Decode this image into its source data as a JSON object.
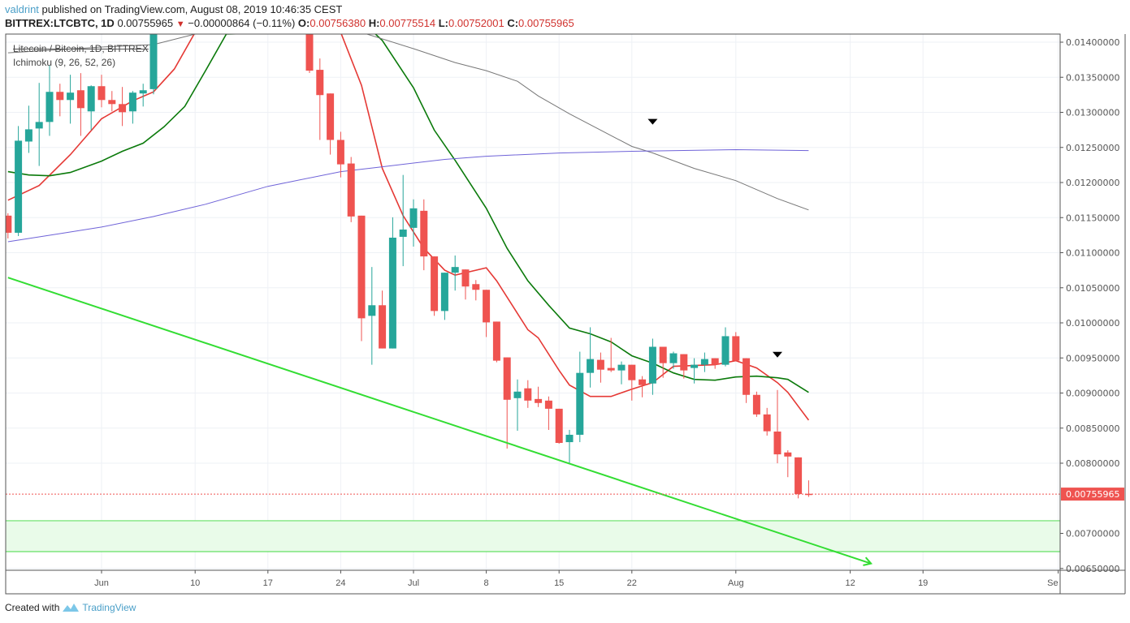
{
  "header": {
    "author": "valdrint",
    "published_text": "published on TradingView.com, August 08, 2019 10:46:35 CEST",
    "symbol": "BITTREX:LTCBTC, 1D",
    "last": "0.00755965",
    "change": "−0.00000864 (−0.11%)",
    "change_direction_icon": "triangle-down-icon",
    "o_label": "O:",
    "o": "0.00756380",
    "h_label": "H:",
    "h": "0.00775514",
    "l_label": "L:",
    "l": "0.00752001",
    "c_label": "C:",
    "c": "0.00755965"
  },
  "legend": {
    "series": "Litecoin / Bitcoin, 1D, BITTREX",
    "indicator": "Ichimoku (9, 26, 52, 26)"
  },
  "footer": {
    "created_with": "Created with",
    "brand": "TradingView"
  },
  "colors": {
    "up": "#26a69a",
    "down": "#ef5350",
    "conversion_line": "#e53935",
    "base_line": "#0b7a0b",
    "lagging_line": "#777777",
    "purple_line": "#6f63d8",
    "trendline": "#33dd33",
    "zone_fill": "#e9fbe9",
    "zone_border": "#66e066",
    "last_price": "#ef5350"
  },
  "chart_data": {
    "type": "candlestick",
    "ylim": [
      0.0065,
      0.0141
    ],
    "grid": true,
    "y_ticks": [
      "0.01400000",
      "0.01350000",
      "0.01300000",
      "0.01250000",
      "0.01200000",
      "0.01150000",
      "0.01100000",
      "0.01050000",
      "0.01000000",
      "0.00950000",
      "0.00900000",
      "0.00850000",
      "0.00800000",
      "0.00700000",
      "0.00650000"
    ],
    "y_tick_values": [
      0.014,
      0.0135,
      0.013,
      0.0125,
      0.012,
      0.0115,
      0.011,
      0.0105,
      0.01,
      0.0095,
      0.009,
      0.0085,
      0.008,
      0.007,
      0.0065
    ],
    "x_ticks": [
      {
        "label": "Jun",
        "date": "2019-06-01"
      },
      {
        "label": "10",
        "date": "2019-06-10"
      },
      {
        "label": "17",
        "date": "2019-06-17"
      },
      {
        "label": "24",
        "date": "2019-06-24"
      },
      {
        "label": "Jul",
        "date": "2019-07-01"
      },
      {
        "label": "8",
        "date": "2019-07-08"
      },
      {
        "label": "15",
        "date": "2019-07-15"
      },
      {
        "label": "22",
        "date": "2019-07-22"
      },
      {
        "label": "Aug",
        "date": "2019-08-01"
      },
      {
        "label": "12",
        "date": "2019-08-12"
      },
      {
        "label": "19",
        "date": "2019-08-19"
      },
      {
        "label": "Se",
        "date": "2019-09-01"
      }
    ],
    "last_price_label": "0.00755965",
    "last_price": 0.00755965,
    "candles_columns": [
      "date",
      "open",
      "high",
      "low",
      "close"
    ],
    "candles": [
      [
        "2019-05-23",
        0.011528,
        0.011562,
        0.011203,
        0.011284
      ],
      [
        "2019-05-24",
        0.011284,
        0.012805,
        0.011237,
        0.012596
      ],
      [
        "2019-05-25",
        0.012584,
        0.013095,
        0.012422,
        0.012758
      ],
      [
        "2019-05-26",
        0.01277,
        0.01342,
        0.012236,
        0.012863
      ],
      [
        "2019-05-27",
        0.012863,
        0.013675,
        0.012665,
        0.013292
      ],
      [
        "2019-05-28",
        0.013292,
        0.013408,
        0.012944,
        0.013176
      ],
      [
        "2019-05-29",
        0.013176,
        0.013536,
        0.012839,
        0.013281
      ],
      [
        "2019-05-30",
        0.013315,
        0.013559,
        0.012665,
        0.01306
      ],
      [
        "2019-05-31",
        0.013014,
        0.013385,
        0.012747,
        0.013373
      ],
      [
        "2019-06-01",
        0.013373,
        0.013536,
        0.013072,
        0.013176
      ],
      [
        "2019-06-02",
        0.013176,
        0.013304,
        0.013014,
        0.013118
      ],
      [
        "2019-06-03",
        0.013118,
        0.013362,
        0.012805,
        0.013002
      ],
      [
        "2019-06-04",
        0.013014,
        0.013304,
        0.012839,
        0.013281
      ],
      [
        "2019-06-05",
        0.013269,
        0.013408,
        0.013083,
        0.013315
      ],
      [
        "2019-06-06",
        0.013331,
        0.0146,
        0.013257,
        0.0145
      ],
      [
        "2019-06-21",
        0.0142,
        0.0143,
        0.01356,
        0.013594
      ],
      [
        "2019-06-22",
        0.013606,
        0.013768,
        0.012607,
        0.013246
      ],
      [
        "2019-06-23",
        0.013269,
        0.013269,
        0.012398,
        0.012607
      ],
      [
        "2019-06-24",
        0.012607,
        0.012723,
        0.012073,
        0.012259
      ],
      [
        "2019-06-25",
        0.012271,
        0.012364,
        0.011435,
        0.011516
      ],
      [
        "2019-06-26",
        0.011528,
        0.011528,
        0.00974,
        0.010065
      ],
      [
        "2019-06-27",
        0.0101,
        0.010796,
        0.009403,
        0.010251
      ],
      [
        "2019-06-28",
        0.010251,
        0.01046,
        0.009635,
        0.009635
      ],
      [
        "2019-06-29",
        0.009635,
        0.011504,
        0.009635,
        0.011214
      ],
      [
        "2019-06-30",
        0.011226,
        0.012108,
        0.010808,
        0.01133
      ],
      [
        "2019-07-01",
        0.011354,
        0.01176,
        0.011086,
        0.011632
      ],
      [
        "2019-07-02",
        0.011597,
        0.01176,
        0.01075,
        0.010947
      ],
      [
        "2019-07-03",
        0.010947,
        0.010947,
        0.0101,
        0.010169
      ],
      [
        "2019-07-04",
        0.010169,
        0.010715,
        0.010042,
        0.010715
      ],
      [
        "2019-07-05",
        0.010715,
        0.01096,
        0.01046,
        0.010796
      ],
      [
        "2019-07-06",
        0.010761,
        0.010761,
        0.010332,
        0.010518
      ],
      [
        "2019-07-07",
        0.010552,
        0.01061,
        0.01032,
        0.010471
      ],
      [
        "2019-07-08",
        0.010471,
        0.010471,
        0.009798,
        0.010007
      ],
      [
        "2019-07-09",
        0.010018,
        0.010018,
        0.009438,
        0.009461
      ],
      [
        "2019-07-10",
        0.009508,
        0.009508,
        0.008208,
        0.008904
      ],
      [
        "2019-07-11",
        0.008927,
        0.009194,
        0.008463,
        0.00902
      ],
      [
        "2019-07-12",
        0.009067,
        0.009183,
        0.008788,
        0.008892
      ],
      [
        "2019-07-13",
        0.008915,
        0.00909,
        0.0088,
        0.008858
      ],
      [
        "2019-07-14",
        0.008892,
        0.008951,
        0.008474,
        0.008776
      ],
      [
        "2019-07-15",
        0.008776,
        0.008776,
        0.008277,
        0.008289
      ],
      [
        "2019-07-16",
        0.0083,
        0.008475,
        0.007987,
        0.008405
      ],
      [
        "2019-07-17",
        0.008405,
        0.009589,
        0.0083,
        0.009287
      ],
      [
        "2019-07-18",
        0.009287,
        0.009937,
        0.009078,
        0.009484
      ],
      [
        "2019-07-19",
        0.009473,
        0.009577,
        0.009148,
        0.009333
      ],
      [
        "2019-07-20",
        0.009357,
        0.009786,
        0.009299,
        0.009322
      ],
      [
        "2019-07-21",
        0.009322,
        0.00945,
        0.009125,
        0.009403
      ],
      [
        "2019-07-22",
        0.009403,
        0.009403,
        0.008892,
        0.009183
      ],
      [
        "2019-07-23",
        0.009194,
        0.009241,
        0.008939,
        0.009113
      ],
      [
        "2019-07-24",
        0.009136,
        0.009775,
        0.008974,
        0.009659
      ],
      [
        "2019-07-25",
        0.009659,
        0.009659,
        0.009217,
        0.009426
      ],
      [
        "2019-07-26",
        0.009426,
        0.009589,
        0.009345,
        0.009566
      ],
      [
        "2019-07-27",
        0.009554,
        0.009554,
        0.009206,
        0.009322
      ],
      [
        "2019-07-28",
        0.009357,
        0.009496,
        0.009136,
        0.009403
      ],
      [
        "2019-07-29",
        0.009403,
        0.009577,
        0.009299,
        0.009484
      ],
      [
        "2019-07-30",
        0.009496,
        0.009496,
        0.009345,
        0.009403
      ],
      [
        "2019-07-31",
        0.009403,
        0.009937,
        0.00938,
        0.00981
      ],
      [
        "2019-08-01",
        0.00981,
        0.009868,
        0.009461,
        0.009461
      ],
      [
        "2019-08-02",
        0.009496,
        0.009496,
        0.008858,
        0.008974
      ],
      [
        "2019-08-03",
        0.008974,
        0.00902,
        0.00866,
        0.008695
      ],
      [
        "2019-08-04",
        0.008695,
        0.008788,
        0.008393,
        0.008455
      ],
      [
        "2019-08-05",
        0.008451,
        0.009043,
        0.007999,
        0.008126
      ],
      [
        "2019-08-06",
        0.008153,
        0.008184,
        0.007801,
        0.008095
      ],
      [
        "2019-08-07",
        0.008083,
        0.008083,
        0.007499,
        0.00756
      ],
      [
        "2019-08-08",
        0.0075638,
        0.00775514,
        0.00752001,
        0.00755965
      ]
    ],
    "lines": [
      {
        "key": "conversion_line",
        "points": [
          [
            "2019-05-23",
            0.011748
          ],
          [
            "2019-05-26",
            0.011957
          ],
          [
            "2019-05-29",
            0.012398
          ],
          [
            "2019-06-01",
            0.012909
          ],
          [
            "2019-06-04",
            0.013164
          ],
          [
            "2019-06-06",
            0.013292
          ],
          [
            "2019-06-08",
            0.013617
          ],
          [
            "2019-06-10",
            0.01414
          ],
          [
            "2019-06-24",
            0.01414
          ],
          [
            "2019-06-26",
            0.013385
          ],
          [
            "2019-06-28",
            0.012201
          ],
          [
            "2019-06-30",
            0.011528
          ],
          [
            "2019-07-02",
            0.011063
          ],
          [
            "2019-07-04",
            0.01075
          ],
          [
            "2019-07-05",
            0.01068
          ],
          [
            "2019-07-08",
            0.010785
          ],
          [
            "2019-07-09",
            0.010599
          ],
          [
            "2019-07-11",
            0.010134
          ],
          [
            "2019-07-12",
            0.009902
          ],
          [
            "2019-07-13",
            0.009786
          ],
          [
            "2019-07-15",
            0.009322
          ],
          [
            "2019-07-16",
            0.009113
          ],
          [
            "2019-07-18",
            0.008951
          ],
          [
            "2019-07-20",
            0.008951
          ],
          [
            "2019-07-22",
            0.009055
          ],
          [
            "2019-07-24",
            0.009148
          ],
          [
            "2019-07-26",
            0.00938
          ],
          [
            "2019-07-28",
            0.009392
          ],
          [
            "2019-07-30",
            0.009403
          ],
          [
            "2019-08-01",
            0.009461
          ],
          [
            "2019-08-03",
            0.009357
          ],
          [
            "2019-08-05",
            0.009148
          ],
          [
            "2019-08-06",
            0.009009
          ],
          [
            "2019-08-08",
            0.008614
          ]
        ]
      },
      {
        "key": "base_line",
        "points": [
          [
            "2019-05-23",
            0.012155
          ],
          [
            "2019-05-25",
            0.012108
          ],
          [
            "2019-05-27",
            0.012096
          ],
          [
            "2019-05-29",
            0.012143
          ],
          [
            "2019-06-01",
            0.012305
          ],
          [
            "2019-06-03",
            0.012445
          ],
          [
            "2019-06-05",
            0.012561
          ],
          [
            "2019-06-07",
            0.012793
          ],
          [
            "2019-06-09",
            0.013083
          ],
          [
            "2019-06-11",
            0.013594
          ],
          [
            "2019-06-13",
            0.014116
          ],
          [
            "2019-06-27",
            0.014163
          ],
          [
            "2019-06-28",
            0.014024
          ],
          [
            "2019-07-01",
            0.01335
          ],
          [
            "2019-07-03",
            0.012747
          ],
          [
            "2019-07-05",
            0.012317
          ],
          [
            "2019-07-08",
            0.011632
          ],
          [
            "2019-07-10",
            0.011063
          ],
          [
            "2019-07-12",
            0.010599
          ],
          [
            "2019-07-14",
            0.010251
          ],
          [
            "2019-07-16",
            0.009926
          ],
          [
            "2019-07-18",
            0.009844
          ],
          [
            "2019-07-20",
            0.009728
          ],
          [
            "2019-07-22",
            0.009531
          ],
          [
            "2019-07-24",
            0.009427
          ],
          [
            "2019-07-26",
            0.009287
          ],
          [
            "2019-07-28",
            0.009194
          ],
          [
            "2019-07-30",
            0.009183
          ],
          [
            "2019-08-01",
            0.009229
          ],
          [
            "2019-08-03",
            0.009241
          ],
          [
            "2019-08-05",
            0.009217
          ],
          [
            "2019-08-06",
            0.009194
          ],
          [
            "2019-08-08",
            0.009009
          ]
        ]
      },
      {
        "key": "lagging_line",
        "points": [
          [
            "2019-05-23",
            0.013849
          ],
          [
            "2019-05-27",
            0.013884
          ],
          [
            "2019-06-01",
            0.013931
          ],
          [
            "2019-06-06",
            0.013965
          ],
          [
            "2019-06-10",
            0.014116
          ],
          [
            "2019-06-25",
            0.014163
          ],
          [
            "2019-06-26",
            0.01414
          ],
          [
            "2019-07-01",
            0.013907
          ],
          [
            "2019-07-05",
            0.01371
          ],
          [
            "2019-07-08",
            0.013594
          ],
          [
            "2019-07-11",
            0.013443
          ],
          [
            "2019-07-13",
            0.013234
          ],
          [
            "2019-07-16",
            0.012979
          ],
          [
            "2019-07-19",
            0.012747
          ],
          [
            "2019-07-22",
            0.012514
          ],
          [
            "2019-07-24",
            0.012422
          ],
          [
            "2019-07-28",
            0.012201
          ],
          [
            "2019-08-01",
            0.012027
          ],
          [
            "2019-08-05",
            0.011771
          ],
          [
            "2019-08-08",
            0.011609
          ]
        ]
      },
      {
        "key": "purple_line",
        "points": [
          [
            "2019-05-23",
            0.011156
          ],
          [
            "2019-05-28",
            0.011272
          ],
          [
            "2019-06-01",
            0.011365
          ],
          [
            "2019-06-06",
            0.011516
          ],
          [
            "2019-06-11",
            0.01169
          ],
          [
            "2019-06-17",
            0.011946
          ],
          [
            "2019-06-24",
            0.012155
          ],
          [
            "2019-06-28",
            0.012224
          ],
          [
            "2019-07-04",
            0.012329
          ],
          [
            "2019-07-08",
            0.012375
          ],
          [
            "2019-07-15",
            0.012421
          ],
          [
            "2019-07-22",
            0.012445
          ],
          [
            "2019-08-01",
            0.012468
          ],
          [
            "2019-08-08",
            0.012456
          ]
        ]
      }
    ],
    "trendline": {
      "start": [
        "2019-05-23",
        0.010645
      ],
      "end": [
        "2019-08-14",
        0.00657
      ],
      "arrow": true
    },
    "zone": {
      "top": 0.00718,
      "bottom": 0.00674
    },
    "markers": [
      {
        "date": "2019-07-24",
        "price": 0.01286,
        "icon": "triangle-down-marker"
      },
      {
        "date": "2019-08-05",
        "price": 0.00954,
        "icon": "triangle-down-marker"
      }
    ]
  }
}
